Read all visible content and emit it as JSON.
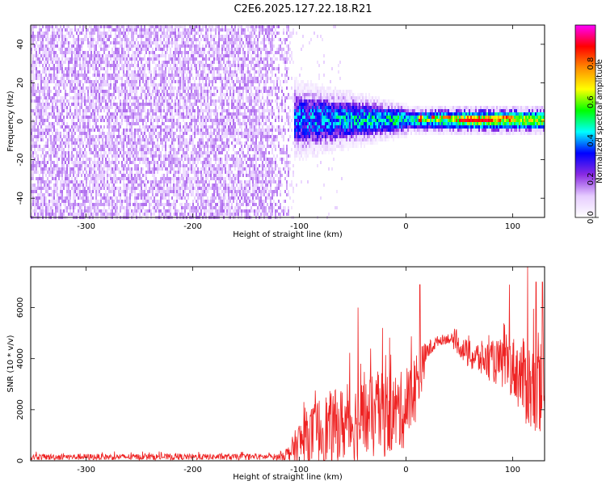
{
  "title": "C2E6.2025.127.22.18.R21",
  "chart_data": [
    {
      "type": "heatmap",
      "xlabel": "Height of straight line (km)",
      "ylabel": "Frequency (Hz)",
      "xlim": [
        -352,
        130
      ],
      "ylim": [
        -50,
        50
      ],
      "xticks": [
        -300,
        -200,
        -100,
        0,
        100
      ],
      "yticks": [
        -40,
        -20,
        0,
        20,
        40
      ],
      "colorbar": {
        "label": "Normalized spectral amplitude",
        "range": [
          0.0,
          1.0
        ],
        "ticks": [
          0.0,
          0.2,
          0.4,
          0.6,
          0.8
        ],
        "colors": [
          "#ffffff",
          "#e6ccff",
          "#8a2be2",
          "#0000ff",
          "#00ffff",
          "#00ff00",
          "#ffff00",
          "#ff8c00",
          "#ff0000",
          "#ff00ff"
        ]
      },
      "regions": [
        {
          "x": [
            -352,
            -110
          ],
          "description_level": 0.12,
          "band_hz": [
            -50,
            50
          ]
        },
        {
          "x": [
            -110,
            0
          ],
          "description_level": 0.3,
          "band_hz": [
            -10,
            10
          ]
        },
        {
          "x": [
            0,
            130
          ],
          "description_level": 0.5,
          "band_hz": [
            -3,
            3
          ]
        }
      ]
    },
    {
      "type": "line",
      "xlabel": "Height of straight line (km)",
      "ylabel": "SNR (10 * v/v)",
      "xlim": [
        -352,
        130
      ],
      "ylim": [
        0,
        7600
      ],
      "xticks": [
        -300,
        -200,
        -100,
        0,
        100
      ],
      "yticks": [
        0,
        2000,
        4000,
        6000
      ],
      "color": "#ee2222",
      "envelope": {
        "x": [
          -352,
          -120,
          -110,
          -100,
          -80,
          -60,
          -40,
          -20,
          -10,
          0,
          10,
          20,
          30,
          40,
          50,
          60,
          80,
          100,
          110,
          120,
          130
        ],
        "base": [
          150,
          150,
          300,
          700,
          1200,
          1400,
          1600,
          1800,
          1900,
          2000,
          3000,
          4300,
          4700,
          4800,
          4500,
          4100,
          3900,
          3700,
          3200,
          2700,
          2500
        ],
        "amp": [
          120,
          120,
          300,
          900,
          1400,
          1500,
          1600,
          1700,
          1600,
          1500,
          1400,
          400,
          200,
          200,
          400,
          600,
          800,
          1200,
          1600,
          2000,
          2000
        ],
        "spikes": [
          {
            "x": -45,
            "y": 6000
          },
          {
            "x": -22,
            "y": 5200
          },
          {
            "x": 13,
            "y": 6900
          },
          {
            "x": 97,
            "y": 6900
          },
          {
            "x": 114,
            "y": 7600
          },
          {
            "x": 122,
            "y": 7000
          },
          {
            "x": 128,
            "y": 7000
          }
        ]
      }
    }
  ]
}
